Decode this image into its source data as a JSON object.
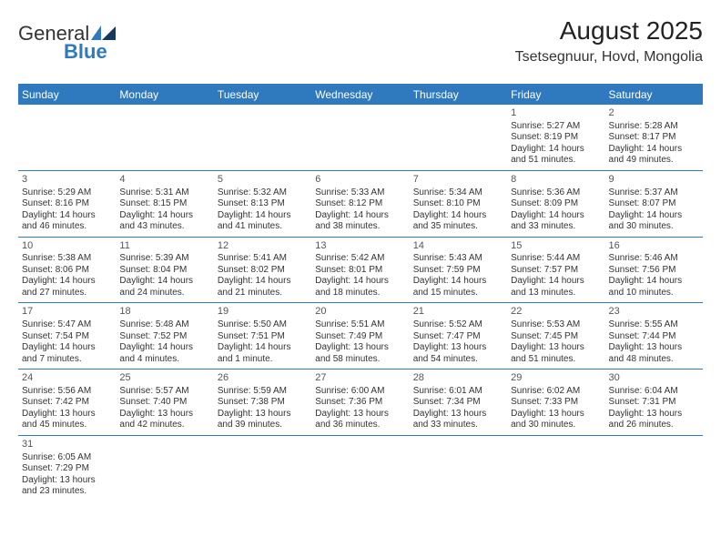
{
  "brand": {
    "part1": "General",
    "part2": "Blue"
  },
  "title": "August 2025",
  "location": "Tsetsegnuur, Hovd, Mongolia",
  "colors": {
    "header_bg": "#2f79bf",
    "header_text": "#ffffff",
    "bg": "#ffffff",
    "cell_text": "#333333",
    "rule": "#2f79bf",
    "brand_blue": "#2f79bf"
  },
  "daynames": [
    "Sunday",
    "Monday",
    "Tuesday",
    "Wednesday",
    "Thursday",
    "Friday",
    "Saturday"
  ],
  "weeks": [
    [
      null,
      null,
      null,
      null,
      null,
      {
        "n": "1",
        "sr": "Sunrise: 5:27 AM",
        "ss": "Sunset: 8:19 PM",
        "dl1": "Daylight: 14 hours",
        "dl2": "and 51 minutes."
      },
      {
        "n": "2",
        "sr": "Sunrise: 5:28 AM",
        "ss": "Sunset: 8:17 PM",
        "dl1": "Daylight: 14 hours",
        "dl2": "and 49 minutes."
      }
    ],
    [
      {
        "n": "3",
        "sr": "Sunrise: 5:29 AM",
        "ss": "Sunset: 8:16 PM",
        "dl1": "Daylight: 14 hours",
        "dl2": "and 46 minutes."
      },
      {
        "n": "4",
        "sr": "Sunrise: 5:31 AM",
        "ss": "Sunset: 8:15 PM",
        "dl1": "Daylight: 14 hours",
        "dl2": "and 43 minutes."
      },
      {
        "n": "5",
        "sr": "Sunrise: 5:32 AM",
        "ss": "Sunset: 8:13 PM",
        "dl1": "Daylight: 14 hours",
        "dl2": "and 41 minutes."
      },
      {
        "n": "6",
        "sr": "Sunrise: 5:33 AM",
        "ss": "Sunset: 8:12 PM",
        "dl1": "Daylight: 14 hours",
        "dl2": "and 38 minutes."
      },
      {
        "n": "7",
        "sr": "Sunrise: 5:34 AM",
        "ss": "Sunset: 8:10 PM",
        "dl1": "Daylight: 14 hours",
        "dl2": "and 35 minutes."
      },
      {
        "n": "8",
        "sr": "Sunrise: 5:36 AM",
        "ss": "Sunset: 8:09 PM",
        "dl1": "Daylight: 14 hours",
        "dl2": "and 33 minutes."
      },
      {
        "n": "9",
        "sr": "Sunrise: 5:37 AM",
        "ss": "Sunset: 8:07 PM",
        "dl1": "Daylight: 14 hours",
        "dl2": "and 30 minutes."
      }
    ],
    [
      {
        "n": "10",
        "sr": "Sunrise: 5:38 AM",
        "ss": "Sunset: 8:06 PM",
        "dl1": "Daylight: 14 hours",
        "dl2": "and 27 minutes."
      },
      {
        "n": "11",
        "sr": "Sunrise: 5:39 AM",
        "ss": "Sunset: 8:04 PM",
        "dl1": "Daylight: 14 hours",
        "dl2": "and 24 minutes."
      },
      {
        "n": "12",
        "sr": "Sunrise: 5:41 AM",
        "ss": "Sunset: 8:02 PM",
        "dl1": "Daylight: 14 hours",
        "dl2": "and 21 minutes."
      },
      {
        "n": "13",
        "sr": "Sunrise: 5:42 AM",
        "ss": "Sunset: 8:01 PM",
        "dl1": "Daylight: 14 hours",
        "dl2": "and 18 minutes."
      },
      {
        "n": "14",
        "sr": "Sunrise: 5:43 AM",
        "ss": "Sunset: 7:59 PM",
        "dl1": "Daylight: 14 hours",
        "dl2": "and 15 minutes."
      },
      {
        "n": "15",
        "sr": "Sunrise: 5:44 AM",
        "ss": "Sunset: 7:57 PM",
        "dl1": "Daylight: 14 hours",
        "dl2": "and 13 minutes."
      },
      {
        "n": "16",
        "sr": "Sunrise: 5:46 AM",
        "ss": "Sunset: 7:56 PM",
        "dl1": "Daylight: 14 hours",
        "dl2": "and 10 minutes."
      }
    ],
    [
      {
        "n": "17",
        "sr": "Sunrise: 5:47 AM",
        "ss": "Sunset: 7:54 PM",
        "dl1": "Daylight: 14 hours",
        "dl2": "and 7 minutes."
      },
      {
        "n": "18",
        "sr": "Sunrise: 5:48 AM",
        "ss": "Sunset: 7:52 PM",
        "dl1": "Daylight: 14 hours",
        "dl2": "and 4 minutes."
      },
      {
        "n": "19",
        "sr": "Sunrise: 5:50 AM",
        "ss": "Sunset: 7:51 PM",
        "dl1": "Daylight: 14 hours",
        "dl2": "and 1 minute."
      },
      {
        "n": "20",
        "sr": "Sunrise: 5:51 AM",
        "ss": "Sunset: 7:49 PM",
        "dl1": "Daylight: 13 hours",
        "dl2": "and 58 minutes."
      },
      {
        "n": "21",
        "sr": "Sunrise: 5:52 AM",
        "ss": "Sunset: 7:47 PM",
        "dl1": "Daylight: 13 hours",
        "dl2": "and 54 minutes."
      },
      {
        "n": "22",
        "sr": "Sunrise: 5:53 AM",
        "ss": "Sunset: 7:45 PM",
        "dl1": "Daylight: 13 hours",
        "dl2": "and 51 minutes."
      },
      {
        "n": "23",
        "sr": "Sunrise: 5:55 AM",
        "ss": "Sunset: 7:44 PM",
        "dl1": "Daylight: 13 hours",
        "dl2": "and 48 minutes."
      }
    ],
    [
      {
        "n": "24",
        "sr": "Sunrise: 5:56 AM",
        "ss": "Sunset: 7:42 PM",
        "dl1": "Daylight: 13 hours",
        "dl2": "and 45 minutes."
      },
      {
        "n": "25",
        "sr": "Sunrise: 5:57 AM",
        "ss": "Sunset: 7:40 PM",
        "dl1": "Daylight: 13 hours",
        "dl2": "and 42 minutes."
      },
      {
        "n": "26",
        "sr": "Sunrise: 5:59 AM",
        "ss": "Sunset: 7:38 PM",
        "dl1": "Daylight: 13 hours",
        "dl2": "and 39 minutes."
      },
      {
        "n": "27",
        "sr": "Sunrise: 6:00 AM",
        "ss": "Sunset: 7:36 PM",
        "dl1": "Daylight: 13 hours",
        "dl2": "and 36 minutes."
      },
      {
        "n": "28",
        "sr": "Sunrise: 6:01 AM",
        "ss": "Sunset: 7:34 PM",
        "dl1": "Daylight: 13 hours",
        "dl2": "and 33 minutes."
      },
      {
        "n": "29",
        "sr": "Sunrise: 6:02 AM",
        "ss": "Sunset: 7:33 PM",
        "dl1": "Daylight: 13 hours",
        "dl2": "and 30 minutes."
      },
      {
        "n": "30",
        "sr": "Sunrise: 6:04 AM",
        "ss": "Sunset: 7:31 PM",
        "dl1": "Daylight: 13 hours",
        "dl2": "and 26 minutes."
      }
    ],
    [
      {
        "n": "31",
        "sr": "Sunrise: 6:05 AM",
        "ss": "Sunset: 7:29 PM",
        "dl1": "Daylight: 13 hours",
        "dl2": "and 23 minutes."
      },
      null,
      null,
      null,
      null,
      null,
      null
    ]
  ]
}
